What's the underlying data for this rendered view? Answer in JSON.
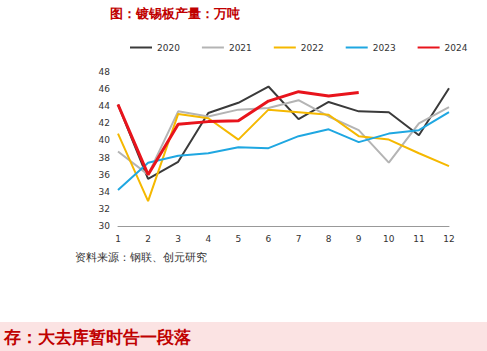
{
  "chart_data": {
    "type": "line",
    "title": "图：镀锡板产量：万吨",
    "annotations": [
      "资料来源：钢联、创元研究",
      "存：大去库暂时告一段落"
    ],
    "categories": [
      "1",
      "2",
      "3",
      "4",
      "5",
      "6",
      "7",
      "8",
      "9",
      "10",
      "11",
      "12"
    ],
    "series": [
      {
        "name": "2020",
        "color": "#3a3a3a",
        "values": [
          44.2,
          35.5,
          37.5,
          43.2,
          44.4,
          46.3,
          42.5,
          44.5,
          43.4,
          43.3,
          40.6,
          46.1
        ]
      },
      {
        "name": "2021",
        "color": "#b4b4b4",
        "values": [
          38.7,
          36.0,
          43.4,
          42.8,
          43.6,
          43.8,
          44.7,
          42.8,
          41.2,
          37.4,
          42.0,
          43.9
        ]
      },
      {
        "name": "2022",
        "color": "#f5b800",
        "values": [
          40.8,
          32.9,
          43.1,
          42.6,
          40.1,
          43.6,
          43.3,
          43.0,
          40.5,
          40.1,
          38.5,
          37.0
        ]
      },
      {
        "name": "2023",
        "color": "#1fa7e1",
        "values": [
          34.2,
          37.4,
          38.2,
          38.5,
          39.2,
          39.1,
          40.5,
          41.3,
          39.8,
          40.8,
          41.2,
          43.3
        ]
      },
      {
        "name": "2024",
        "color": "#e8141c",
        "values": [
          44.2,
          36.0,
          41.9,
          42.2,
          42.3,
          44.6,
          45.7,
          45.2,
          45.6,
          null,
          null,
          null
        ]
      }
    ],
    "ylim": [
      30,
      48
    ],
    "yticks": [
      30,
      32,
      34,
      36,
      38,
      40,
      42,
      44,
      46,
      48
    ],
    "grid": false,
    "legend": "top"
  }
}
